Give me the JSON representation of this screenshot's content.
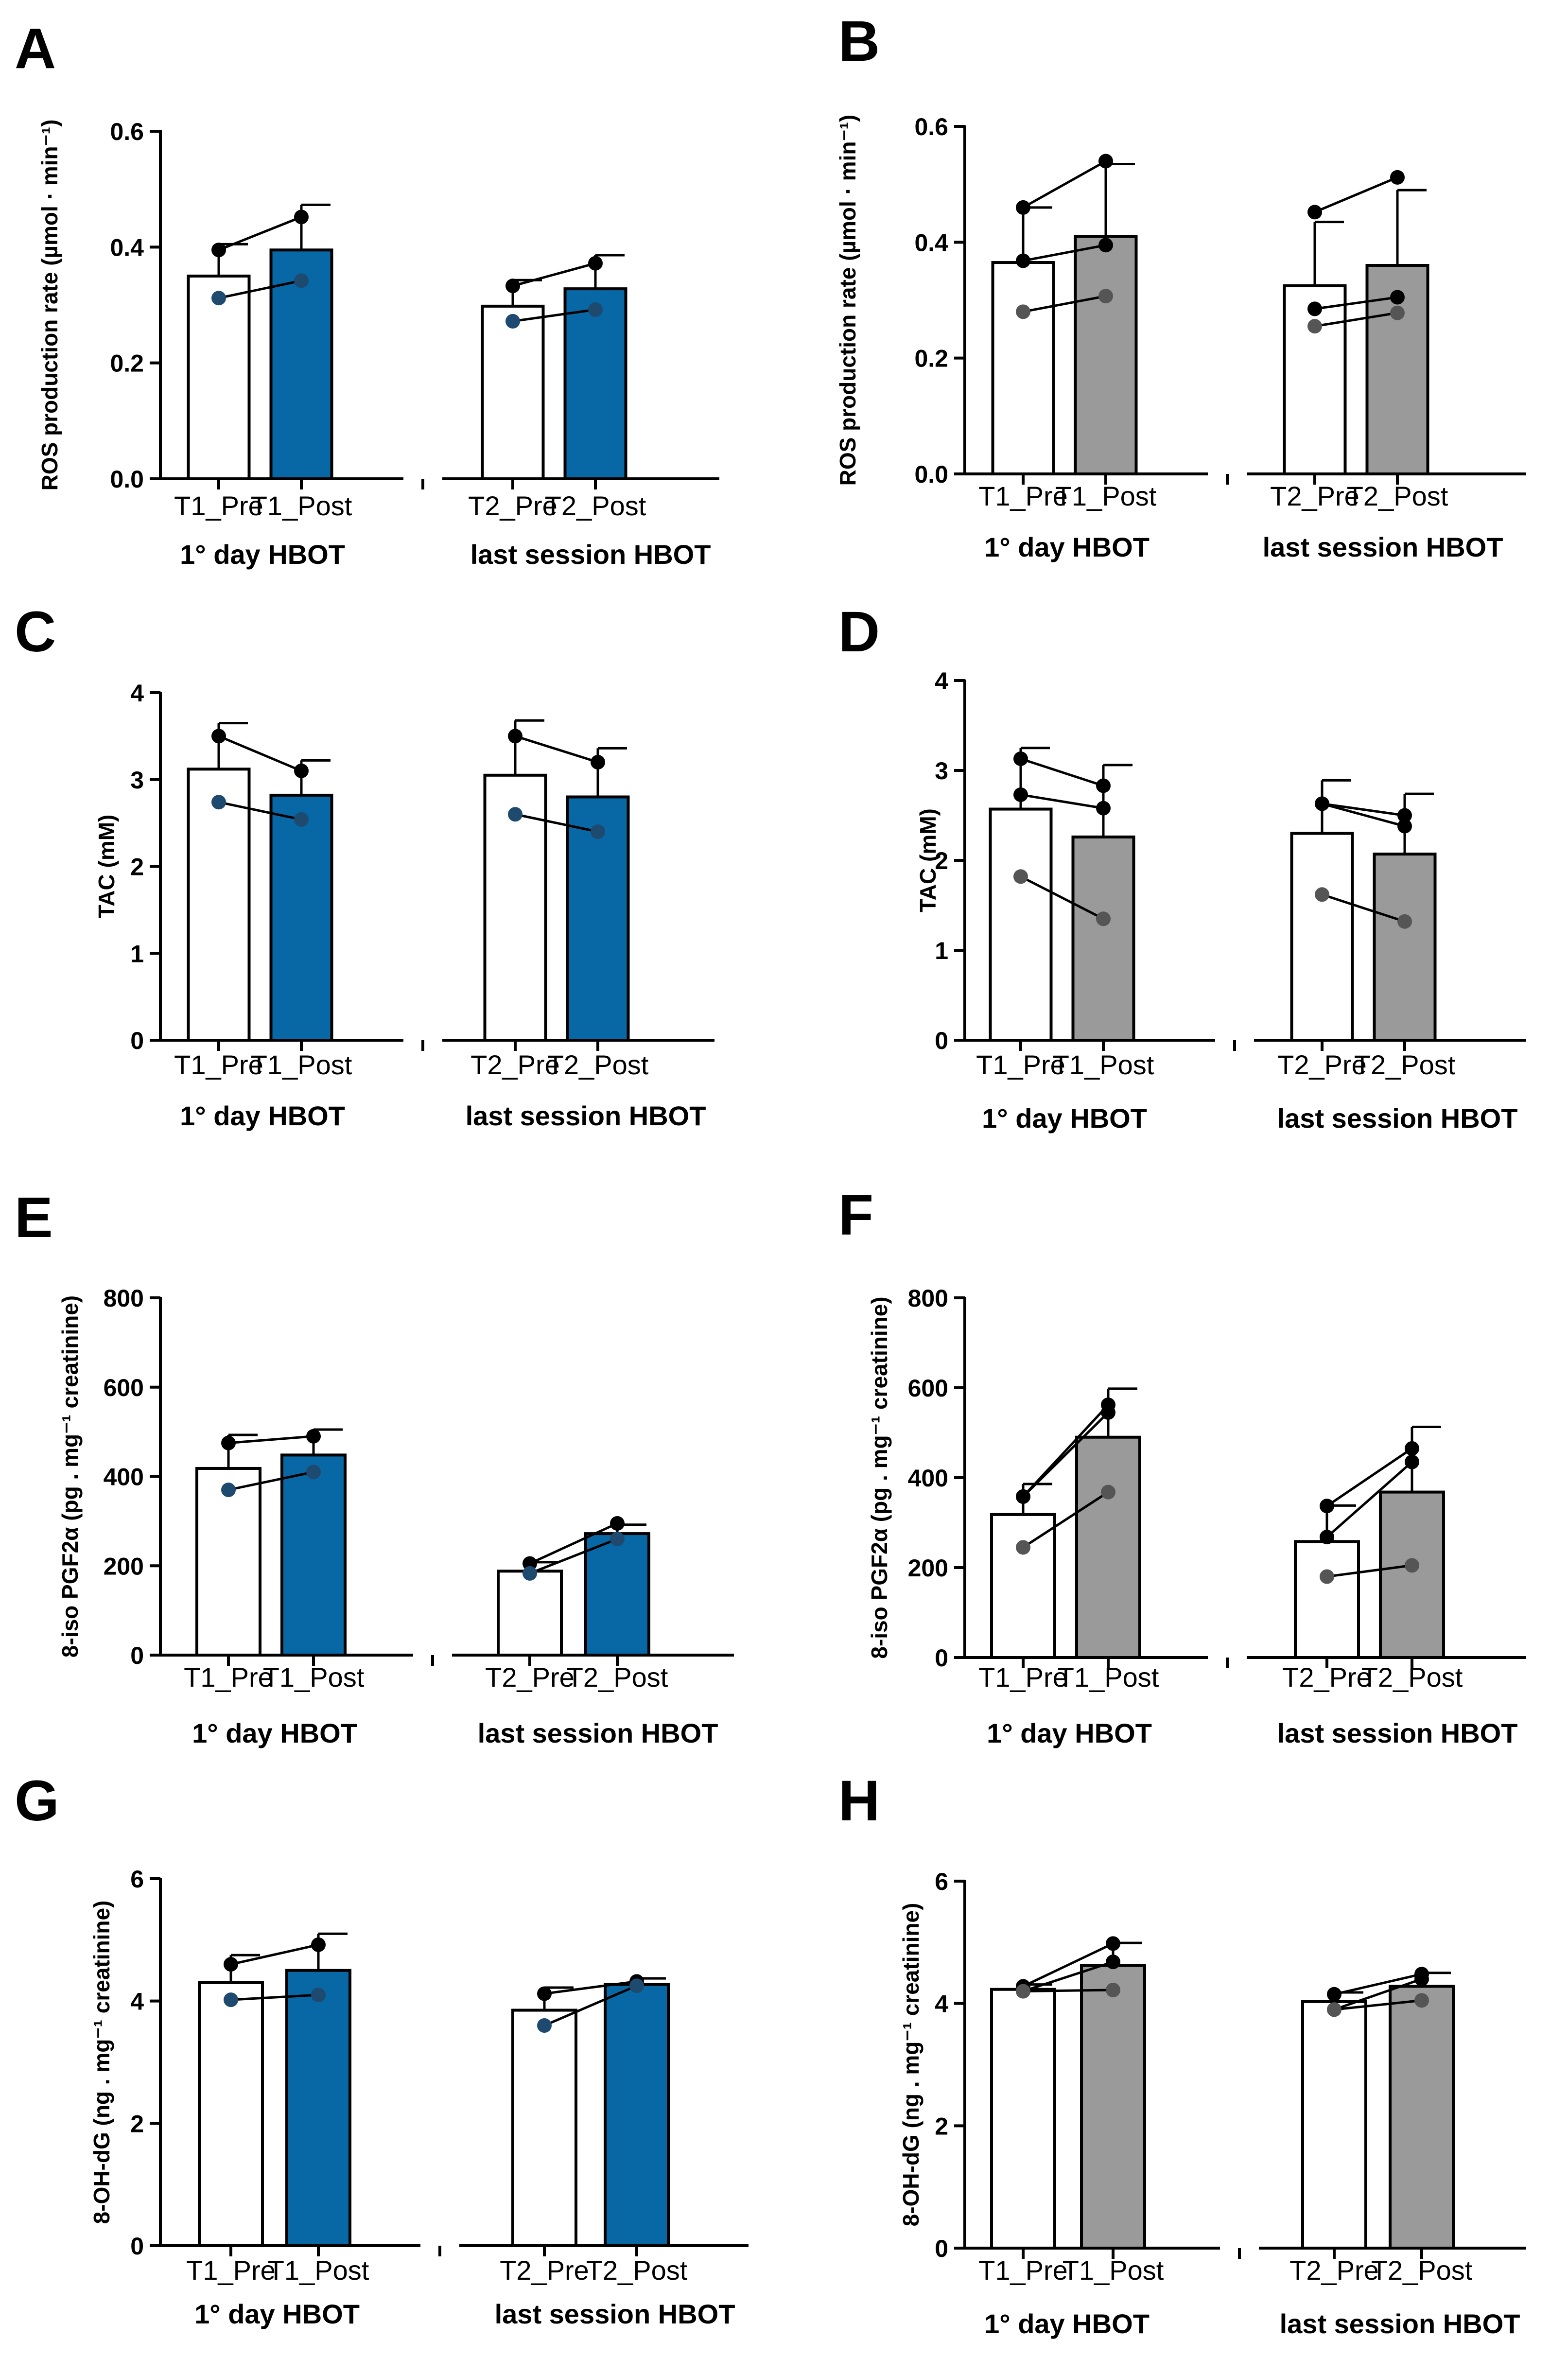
{
  "colors": {
    "axis": "#000000",
    "hbot_blue": "#0868a6",
    "hbot_gray": "#9a9a9a",
    "pre_fill": "#ffffff",
    "dot_dark": "#000000",
    "dot_blue_group": "#1d4a6e",
    "dot_gray_group": "#555555"
  },
  "chart_data": [
    {
      "panel": "A",
      "type": "bar",
      "ylabel": "ROS production rate (µmol · min⁻¹)",
      "ylim": [
        0,
        0.6
      ],
      "yticks": [
        "0.0",
        "0.2",
        "0.4",
        "0.6"
      ],
      "post_color": "#0868a6",
      "categories": [
        "T1_Pre",
        "T1_Post",
        "T2_Pre",
        "T2_Post"
      ],
      "groups": [
        "1° day HBOT",
        "last session HBOT"
      ],
      "values": [
        0.35,
        0.395,
        0.298,
        0.328
      ],
      "errors": [
        0.055,
        0.078,
        0.045,
        0.058
      ],
      "subjects": [
        {
          "values": [
            0.395,
            0.452,
            0.333,
            0.372
          ]
        },
        {
          "values": [
            0.312,
            0.342,
            0.272,
            0.292
          ]
        }
      ]
    },
    {
      "panel": "B",
      "type": "bar",
      "ylabel": "ROS production rate (µmol · min⁻¹)",
      "ylim": [
        0,
        0.6
      ],
      "yticks": [
        "0.0",
        "0.2",
        "0.4",
        "0.6"
      ],
      "post_color": "#9a9a9a",
      "categories": [
        "T1_Pre",
        "T1_Post",
        "T2_Pre",
        "T2_Post"
      ],
      "groups": [
        "1° day HBOT",
        "last session HBOT"
      ],
      "values": [
        0.365,
        0.41,
        0.325,
        0.36
      ],
      "errors": [
        0.095,
        0.125,
        0.11,
        0.13
      ],
      "subjects": [
        {
          "values": [
            0.46,
            0.54,
            0.452,
            0.512
          ]
        },
        {
          "values": [
            0.368,
            0.395,
            0.285,
            0.305
          ]
        },
        {
          "values": [
            0.28,
            0.307,
            0.255,
            0.278
          ]
        }
      ]
    },
    {
      "panel": "C",
      "type": "bar",
      "ylabel": "TAC (mM)",
      "ylim": [
        0,
        4
      ],
      "yticks": [
        "0",
        "1",
        "2",
        "3",
        "4"
      ],
      "post_color": "#0868a6",
      "categories": [
        "T1_Pre",
        "T1_Post",
        "T2_Pre",
        "T2_Post"
      ],
      "groups": [
        "1° day HBOT",
        "last session HBOT"
      ],
      "values": [
        3.12,
        2.82,
        3.05,
        2.8
      ],
      "errors": [
        0.53,
        0.4,
        0.63,
        0.56
      ],
      "subjects": [
        {
          "values": [
            3.5,
            3.1,
            3.5,
            3.2
          ]
        },
        {
          "values": [
            2.74,
            2.54,
            2.6,
            2.4
          ]
        }
      ]
    },
    {
      "panel": "D",
      "type": "bar",
      "ylabel": "TAC (mM)",
      "ylim": [
        0,
        4
      ],
      "yticks": [
        "0",
        "1",
        "2",
        "3",
        "4"
      ],
      "post_color": "#9a9a9a",
      "categories": [
        "T1_Pre",
        "T1_Post",
        "T2_Pre",
        "T2_Post"
      ],
      "groups": [
        "1° day HBOT",
        "last session HBOT"
      ],
      "values": [
        2.57,
        2.26,
        2.3,
        2.07
      ],
      "errors": [
        0.68,
        0.8,
        0.59,
        0.67
      ],
      "subjects": [
        {
          "values": [
            3.13,
            2.83,
            2.63,
            2.5
          ]
        },
        {
          "values": [
            2.73,
            2.58,
            2.63,
            2.38
          ]
        },
        {
          "values": [
            1.82,
            1.35,
            1.62,
            1.32
          ]
        }
      ]
    },
    {
      "panel": "E",
      "type": "bar",
      "ylabel": "8-iso PGF2α (pg . mg⁻¹ creatinine)",
      "ylim": [
        0,
        800
      ],
      "yticks": [
        "0",
        "200",
        "400",
        "600",
        "800"
      ],
      "post_color": "#0868a6",
      "categories": [
        "T1_Pre",
        "T1_Post",
        "T2_Pre",
        "T2_Post"
      ],
      "groups": [
        "1° day HBOT",
        "last session HBOT"
      ],
      "values": [
        418,
        448,
        188,
        272
      ],
      "errors": [
        75,
        57,
        20,
        20
      ],
      "subjects": [
        {
          "values": [
            475,
            490,
            205,
            295
          ]
        },
        {
          "values": [
            370,
            410,
            183,
            260
          ]
        }
      ]
    },
    {
      "panel": "F",
      "type": "bar",
      "ylabel": "8-iso PGF2α (pg . mg⁻¹ creatinine)",
      "ylim": [
        0,
        800
      ],
      "yticks": [
        "0",
        "200",
        "400",
        "600",
        "800"
      ],
      "post_color": "#9a9a9a",
      "categories": [
        "T1_Pre",
        "T1_Post",
        "T2_Pre",
        "T2_Post"
      ],
      "groups": [
        "1° day HBOT",
        "last session HBOT"
      ],
      "values": [
        318,
        490,
        258,
        368
      ],
      "errors": [
        68,
        108,
        80,
        145
      ],
      "subjects": [
        {
          "values": [
            358,
            562,
            337,
            465
          ]
        },
        {
          "values": [
            358,
            545,
            268,
            435
          ]
        },
        {
          "values": [
            245,
            368,
            180,
            205
          ]
        }
      ]
    },
    {
      "panel": "G",
      "type": "bar",
      "ylabel": "8-OH-dG (ng . mg⁻¹ creatinine)",
      "ylim": [
        0,
        6
      ],
      "yticks": [
        "0",
        "2",
        "4",
        "6"
      ],
      "post_color": "#0868a6",
      "categories": [
        "T1_Pre",
        "T1_Post",
        "T2_Pre",
        "T2_Post"
      ],
      "groups": [
        "1° day HBOT",
        "last session HBOT"
      ],
      "values": [
        4.3,
        4.5,
        3.85,
        4.27
      ],
      "errors": [
        0.45,
        0.6,
        0.37,
        0.1
      ],
      "subjects": [
        {
          "values": [
            4.6,
            4.92,
            4.12,
            4.32
          ]
        },
        {
          "values": [
            4.02,
            4.1,
            3.6,
            4.25
          ]
        }
      ]
    },
    {
      "panel": "H",
      "type": "bar",
      "ylabel": "8-OH-dG (ng . mg⁻¹ creatinine)",
      "ylim": [
        0,
        6
      ],
      "yticks": [
        "0",
        "2",
        "4",
        "6"
      ],
      "post_color": "#9a9a9a",
      "categories": [
        "T1_Pre",
        "T1_Post",
        "T2_Pre",
        "T2_Post"
      ],
      "groups": [
        "1° day HBOT",
        "last session HBOT"
      ],
      "values": [
        4.23,
        4.62,
        4.03,
        4.28
      ],
      "errors": [
        0.08,
        0.37,
        0.15,
        0.22
      ],
      "subjects": [
        {
          "values": [
            4.28,
            4.98,
            4.15,
            4.48
          ]
        },
        {
          "values": [
            4.2,
            4.68,
            3.9,
            4.4
          ]
        },
        {
          "values": [
            4.2,
            4.22,
            3.9,
            4.05
          ]
        }
      ]
    }
  ]
}
